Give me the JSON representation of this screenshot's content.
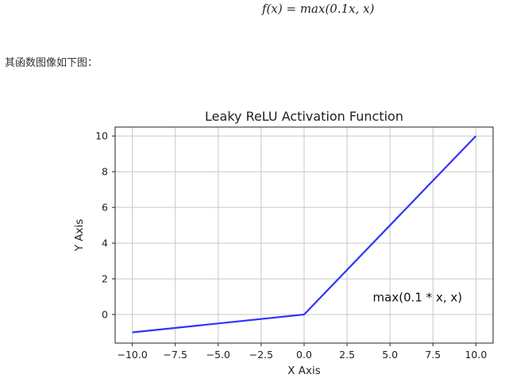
{
  "formula": "f(x) = max(0.1x, x)",
  "caption": "其函数图像如下图：",
  "chart_data": {
    "type": "line",
    "title": "Leaky ReLU Activation Function",
    "xlabel": "X Axis",
    "ylabel": "Y Axis",
    "xlim": [
      -11,
      11
    ],
    "ylim": [
      -1.6,
      10.5
    ],
    "x_ticks": [
      -10.0,
      -7.5,
      -5.0,
      -2.5,
      0.0,
      2.5,
      5.0,
      7.5,
      10.0
    ],
    "x_tick_labels": [
      "−10.0",
      "−7.5",
      "−5.0",
      "−2.5",
      "0.0",
      "2.5",
      "5.0",
      "7.5",
      "10.0"
    ],
    "y_ticks": [
      0,
      2,
      4,
      6,
      8,
      10
    ],
    "y_tick_labels": [
      "0",
      "2",
      "4",
      "6",
      "8",
      "10"
    ],
    "grid": true,
    "series": [
      {
        "x": [
          -10,
          0,
          10
        ],
        "y": [
          -1,
          0,
          10
        ],
        "color": "#3333ff"
      }
    ],
    "annotation": {
      "text": "max(0.1 * x, x)",
      "x": 4,
      "y": 1
    }
  }
}
